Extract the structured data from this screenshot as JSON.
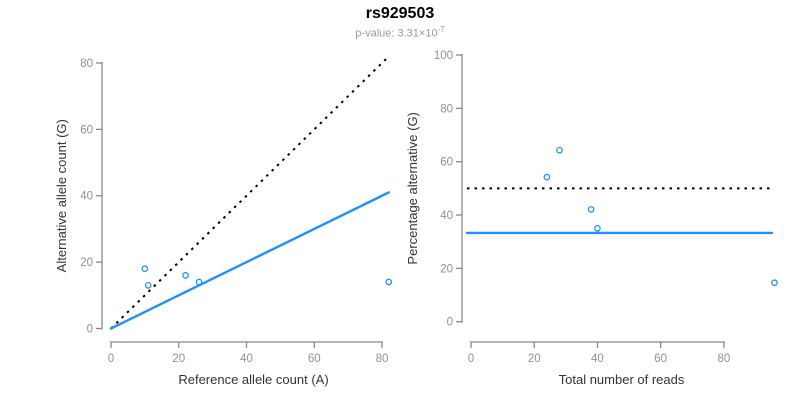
{
  "header": {
    "title": "rs929503",
    "pvalue_prefix": "p-value: 3.31×10",
    "pvalue_exponent": "-7"
  },
  "style": {
    "axis_color": "#888888",
    "tick_label_color": "#919191",
    "axis_title_color": "#333333",
    "point_color": "#1E90FF",
    "identity_line_color": "#000000",
    "fit_line_color": "#1E90FF"
  },
  "chart_data": [
    {
      "type": "scatter",
      "name": "allele-counts-scatter",
      "title": "",
      "xlabel": "Reference allele count (A)",
      "ylabel": "Alternative allele count (G)",
      "xlim": [
        0,
        84
      ],
      "ylim": [
        0,
        82
      ],
      "xticks": [
        0,
        20,
        40,
        60,
        80
      ],
      "yticks": [
        0,
        20,
        40,
        60,
        80
      ],
      "grid": false,
      "legend": "none",
      "points": [
        {
          "x": 10,
          "y": 18
        },
        {
          "x": 11,
          "y": 13
        },
        {
          "x": 22,
          "y": 16
        },
        {
          "x": 26,
          "y": 14
        },
        {
          "x": 82,
          "y": 14
        }
      ],
      "lines": [
        {
          "name": "identity-line",
          "style": "dotted",
          "color": "#000000",
          "from": [
            0,
            0
          ],
          "to": [
            82,
            82
          ]
        },
        {
          "name": "fit-line",
          "style": "solid",
          "color": "#1E90FF",
          "from": [
            0,
            0
          ],
          "to": [
            82,
            41
          ]
        }
      ]
    },
    {
      "type": "scatter",
      "name": "percentage-alternative-scatter",
      "title": "",
      "xlabel": "Total number of reads",
      "ylabel": "Percentage alternative (G)",
      "xlim": [
        0,
        97
      ],
      "ylim": [
        0,
        100
      ],
      "xticks": [
        0,
        20,
        40,
        60,
        80
      ],
      "yticks": [
        0,
        20,
        40,
        60,
        80,
        100
      ],
      "grid": false,
      "legend": "none",
      "points": [
        {
          "x": 28,
          "y": 64.3
        },
        {
          "x": 24,
          "y": 54.2
        },
        {
          "x": 38,
          "y": 42.1
        },
        {
          "x": 40,
          "y": 35.0
        },
        {
          "x": 96,
          "y": 14.6
        }
      ],
      "lines": [
        {
          "name": "expected-percentage-line",
          "style": "dotted",
          "color": "#000000",
          "hline": 50
        },
        {
          "name": "observed-percentage-line",
          "style": "solid",
          "color": "#1E90FF",
          "hline": 33.3
        }
      ]
    }
  ]
}
